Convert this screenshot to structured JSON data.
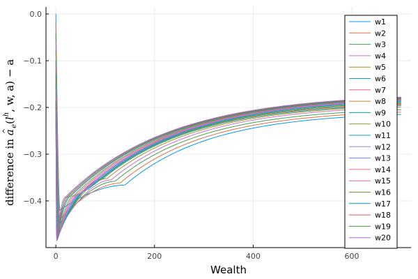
{
  "chart_data": {
    "type": "line",
    "title": "",
    "xlabel": "Wealth",
    "ylabel": "difference in â_e(l^h, w, a) − a",
    "ylabel_parts": {
      "prefix": "difference in ",
      "a": "a",
      "hat": "^",
      "e": "e",
      "args_open": "(",
      "l": "l",
      "h": "h",
      "args_rest": ", w, a)",
      "minus_a": " − a"
    },
    "xlim": [
      -20,
      720
    ],
    "ylim": [
      -0.5,
      0.015
    ],
    "xticks": [
      0,
      200,
      400,
      600
    ],
    "xtick_labels": [
      "0",
      "200",
      "400",
      "600"
    ],
    "yticks": [
      0.0,
      -0.1,
      -0.2,
      -0.3,
      -0.4
    ],
    "ytick_labels": [
      "0.0",
      "−0.1",
      "−0.2",
      "−0.3",
      "−0.4"
    ],
    "grid": true,
    "legend_position": "top-right",
    "x_range": [
      0,
      700
    ],
    "series_count": 20,
    "series": [
      {
        "name": "w1",
        "color": "#009AFA",
        "start": 0.0,
        "dip_x": 8,
        "dip_y": -0.42,
        "knee_x": 140,
        "knee_y": -0.366,
        "end_y": -0.215
      },
      {
        "name": "w2",
        "color": "#E36F47",
        "start": -0.02,
        "dip_x": 8,
        "dip_y": -0.44,
        "knee_x": 130,
        "knee_y": -0.362,
        "end_y": -0.21
      },
      {
        "name": "w3",
        "color": "#3EA44E",
        "start": -0.04,
        "dip_x": 7,
        "dip_y": -0.45,
        "knee_x": 120,
        "knee_y": -0.358,
        "end_y": -0.205
      },
      {
        "name": "w4",
        "color": "#C371D2",
        "start": -0.06,
        "dip_x": 7,
        "dip_y": -0.46,
        "knee_x": 112,
        "knee_y": -0.355,
        "end_y": -0.2
      },
      {
        "name": "w5",
        "color": "#AC8E18",
        "start": -0.08,
        "dip_x": 6,
        "dip_y": -0.465,
        "knee_x": 104,
        "knee_y": -0.352,
        "end_y": -0.197
      },
      {
        "name": "w6",
        "color": "#00AAAE",
        "start": -0.1,
        "dip_x": 6,
        "dip_y": -0.47,
        "knee_x": 96,
        "knee_y": -0.352,
        "end_y": -0.195
      },
      {
        "name": "w7",
        "color": "#ED5E93",
        "start": -0.11,
        "dip_x": 5,
        "dip_y": -0.472,
        "knee_x": 90,
        "knee_y": -0.355,
        "end_y": -0.193
      },
      {
        "name": "w8",
        "color": "#C68225",
        "start": -0.12,
        "dip_x": 5,
        "dip_y": -0.475,
        "knee_x": 84,
        "knee_y": -0.36,
        "end_y": -0.192
      },
      {
        "name": "w9",
        "color": "#00A98D",
        "start": -0.13,
        "dip_x": 5,
        "dip_y": -0.476,
        "knee_x": 78,
        "knee_y": -0.365,
        "end_y": -0.19
      },
      {
        "name": "w10",
        "color": "#8E971E",
        "start": -0.14,
        "dip_x": 4,
        "dip_y": -0.478,
        "knee_x": 72,
        "knee_y": -0.37,
        "end_y": -0.188
      },
      {
        "name": "w11",
        "color": "#00A9CC",
        "start": -0.15,
        "dip_x": 4,
        "dip_y": -0.48,
        "knee_x": 66,
        "knee_y": -0.375,
        "end_y": -0.187
      },
      {
        "name": "w12",
        "color": "#9B7FE9",
        "start": -0.16,
        "dip_x": 4,
        "dip_y": -0.481,
        "knee_x": 60,
        "knee_y": -0.378,
        "end_y": -0.186
      },
      {
        "name": "w13",
        "color": "#618DF6",
        "start": -0.17,
        "dip_x": 3,
        "dip_y": -0.482,
        "knee_x": 54,
        "knee_y": -0.382,
        "end_y": -0.185
      },
      {
        "name": "w14",
        "color": "#F16C7F",
        "start": -0.175,
        "dip_x": 3,
        "dip_y": -0.482,
        "knee_x": 48,
        "knee_y": -0.385,
        "end_y": -0.184
      },
      {
        "name": "w15",
        "color": "#DD64B5",
        "start": -0.18,
        "dip_x": 3,
        "dip_y": -0.483,
        "knee_x": 42,
        "knee_y": -0.387,
        "end_y": -0.183
      },
      {
        "name": "w16",
        "color": "#6B9E32",
        "start": -0.185,
        "dip_x": 3,
        "dip_y": -0.483,
        "knee_x": 36,
        "knee_y": -0.389,
        "end_y": -0.182
      },
      {
        "name": "w17",
        "color": "#0096CD",
        "start": -0.19,
        "dip_x": 2,
        "dip_y": -0.484,
        "knee_x": 30,
        "knee_y": -0.39,
        "end_y": -0.181
      },
      {
        "name": "w18",
        "color": "#E35B57",
        "start": -0.195,
        "dip_x": 2,
        "dip_y": -0.484,
        "knee_x": 26,
        "knee_y": -0.391,
        "end_y": -0.18
      },
      {
        "name": "w19",
        "color": "#3E9B39",
        "start": -0.2,
        "dip_x": 2,
        "dip_y": -0.485,
        "knee_x": 22,
        "knee_y": -0.392,
        "end_y": -0.179
      },
      {
        "name": "w20",
        "color": "#B464E2",
        "start": -0.205,
        "dip_x": 2,
        "dip_y": -0.485,
        "knee_x": 18,
        "knee_y": -0.393,
        "end_y": -0.178
      }
    ]
  }
}
